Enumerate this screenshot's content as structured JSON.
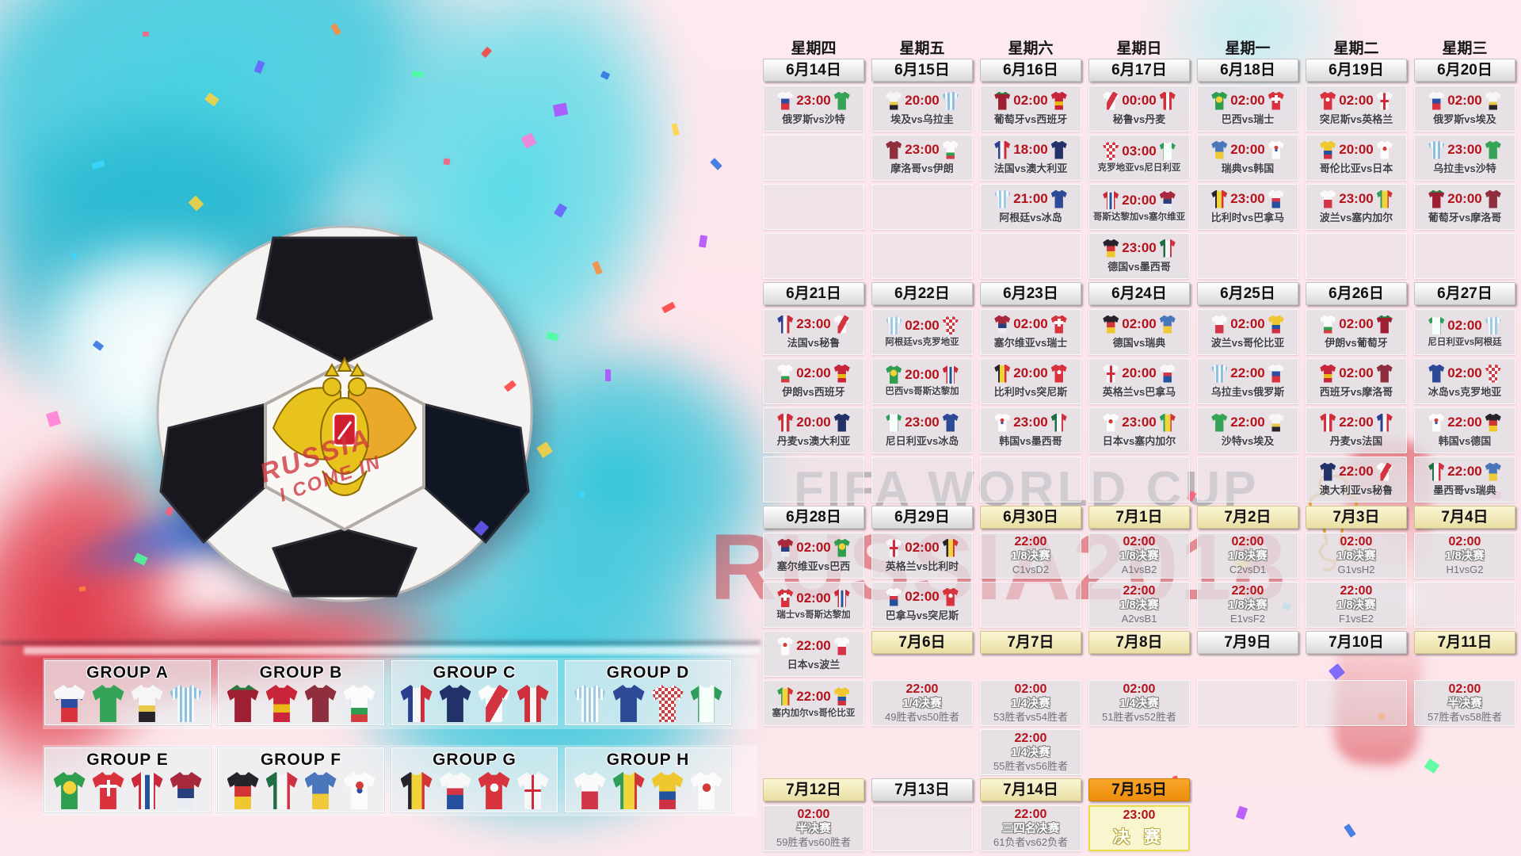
{
  "watermark": {
    "line1": "FIFA WORLD CUP",
    "line2": "RUSSIA2018"
  },
  "handwriting": {
    "line1": "RUSSIA",
    "line2": "I COME IN"
  },
  "weekdays": [
    "星期四",
    "星期五",
    "星期六",
    "星期日",
    "星期一",
    "星期二",
    "星期三"
  ],
  "team_keys": {
    "俄罗斯": "rus",
    "沙特": "ksa",
    "埃及": "egy",
    "乌拉圭": "uru",
    "葡萄牙": "por",
    "西班牙": "esp",
    "摩洛哥": "mar",
    "伊朗": "irn",
    "法国": "fra",
    "澳大利亚": "aus",
    "秘鲁": "per",
    "丹麦": "den",
    "阿根廷": "arg",
    "冰岛": "isl",
    "克罗地亚": "cro",
    "尼日利亚": "nga",
    "巴西": "bra",
    "瑞士": "sui",
    "哥斯达黎加": "crc",
    "塞尔维亚": "srb",
    "德国": "ger",
    "墨西哥": "mex",
    "瑞典": "swe",
    "韩国": "kor",
    "比利时": "bel",
    "巴拿马": "pan",
    "突尼斯": "tun",
    "英格兰": "eng",
    "波兰": "pol",
    "塞内加尔": "sen",
    "哥伦比亚": "col",
    "日本": "jpn"
  },
  "schedule": {
    "rows": [
      {
        "type": "dates",
        "items": [
          {
            "kind": "date",
            "label": "6月14日",
            "style": "plain"
          },
          {
            "kind": "date",
            "label": "6月15日",
            "style": "plain"
          },
          {
            "kind": "date",
            "label": "6月16日",
            "style": "plain"
          },
          {
            "kind": "date",
            "label": "6月17日",
            "style": "plain"
          },
          {
            "kind": "date",
            "label": "6月18日",
            "style": "plain"
          },
          {
            "kind": "date",
            "label": "6月19日",
            "style": "plain"
          },
          {
            "kind": "date",
            "label": "6月20日",
            "style": "plain"
          }
        ]
      },
      {
        "type": "cells",
        "items": [
          {
            "kind": "match",
            "time": "23:00",
            "home": "俄罗斯",
            "away": "沙特"
          },
          {
            "kind": "match",
            "time": "20:00",
            "home": "埃及",
            "away": "乌拉圭"
          },
          {
            "kind": "match",
            "time": "02:00",
            "home": "葡萄牙",
            "away": "西班牙"
          },
          {
            "kind": "match",
            "time": "00:00",
            "home": "秘鲁",
            "away": "丹麦"
          },
          {
            "kind": "match",
            "time": "02:00",
            "home": "巴西",
            "away": "瑞士"
          },
          {
            "kind": "match",
            "time": "02:00",
            "home": "突尼斯",
            "away": "英格兰"
          },
          {
            "kind": "match",
            "time": "02:00",
            "home": "俄罗斯",
            "away": "埃及"
          }
        ]
      },
      {
        "type": "cells",
        "items": [
          {
            "kind": "empty"
          },
          {
            "kind": "match",
            "time": "23:00",
            "home": "摩洛哥",
            "away": "伊朗"
          },
          {
            "kind": "match",
            "time": "18:00",
            "home": "法国",
            "away": "澳大利亚"
          },
          {
            "kind": "match",
            "time": "03:00",
            "home": "克罗地亚",
            "away": "尼日利亚"
          },
          {
            "kind": "match",
            "time": "20:00",
            "home": "瑞典",
            "away": "韩国"
          },
          {
            "kind": "match",
            "time": "20:00",
            "home": "哥伦比亚",
            "away": "日本"
          },
          {
            "kind": "match",
            "time": "23:00",
            "home": "乌拉圭",
            "away": "沙特"
          }
        ]
      },
      {
        "type": "cells",
        "items": [
          {
            "kind": "empty"
          },
          {
            "kind": "empty"
          },
          {
            "kind": "match",
            "time": "21:00",
            "home": "阿根廷",
            "away": "冰岛"
          },
          {
            "kind": "match",
            "time": "20:00",
            "home": "哥斯达黎加",
            "away": "塞尔维亚"
          },
          {
            "kind": "match",
            "time": "23:00",
            "home": "比利时",
            "away": "巴拿马"
          },
          {
            "kind": "match",
            "time": "23:00",
            "home": "波兰",
            "away": "塞内加尔"
          },
          {
            "kind": "match",
            "time": "20:00",
            "home": "葡萄牙",
            "away": "摩洛哥"
          }
        ]
      },
      {
        "type": "cells",
        "items": [
          {
            "kind": "empty"
          },
          {
            "kind": "empty"
          },
          {
            "kind": "empty"
          },
          {
            "kind": "match",
            "time": "23:00",
            "home": "德国",
            "away": "墨西哥"
          },
          {
            "kind": "empty"
          },
          {
            "kind": "empty"
          },
          {
            "kind": "empty"
          }
        ]
      },
      {
        "type": "dates",
        "items": [
          {
            "kind": "date",
            "label": "6月21日",
            "style": "plain"
          },
          {
            "kind": "date",
            "label": "6月22日",
            "style": "plain"
          },
          {
            "kind": "date",
            "label": "6月23日",
            "style": "plain"
          },
          {
            "kind": "date",
            "label": "6月24日",
            "style": "plain"
          },
          {
            "kind": "date",
            "label": "6月25日",
            "style": "plain"
          },
          {
            "kind": "date",
            "label": "6月26日",
            "style": "plain"
          },
          {
            "kind": "date",
            "label": "6月27日",
            "style": "plain"
          }
        ]
      },
      {
        "type": "cells",
        "items": [
          {
            "kind": "match",
            "time": "23:00",
            "home": "法国",
            "away": "秘鲁"
          },
          {
            "kind": "match",
            "time": "02:00",
            "home": "阿根廷",
            "away": "克罗地亚"
          },
          {
            "kind": "match",
            "time": "02:00",
            "home": "塞尔维亚",
            "away": "瑞士"
          },
          {
            "kind": "match",
            "time": "02:00",
            "home": "德国",
            "away": "瑞典"
          },
          {
            "kind": "match",
            "time": "02:00",
            "home": "波兰",
            "away": "哥伦比亚"
          },
          {
            "kind": "match",
            "time": "02:00",
            "home": "伊朗",
            "away": "葡萄牙"
          },
          {
            "kind": "match",
            "time": "02:00",
            "home": "尼日利亚",
            "away": "阿根廷"
          }
        ]
      },
      {
        "type": "cells",
        "items": [
          {
            "kind": "match",
            "time": "02:00",
            "home": "伊朗",
            "away": "西班牙"
          },
          {
            "kind": "match",
            "time": "20:00",
            "home": "巴西",
            "away": "哥斯达黎加"
          },
          {
            "kind": "match",
            "time": "20:00",
            "home": "比利时",
            "away": "突尼斯"
          },
          {
            "kind": "match",
            "time": "20:00",
            "home": "英格兰",
            "away": "巴拿马"
          },
          {
            "kind": "match",
            "time": "22:00",
            "home": "乌拉圭",
            "away": "俄罗斯"
          },
          {
            "kind": "match",
            "time": "02:00",
            "home": "西班牙",
            "away": "摩洛哥"
          },
          {
            "kind": "match",
            "time": "02:00",
            "home": "冰岛",
            "away": "克罗地亚"
          }
        ]
      },
      {
        "type": "cells",
        "items": [
          {
            "kind": "match",
            "time": "20:00",
            "home": "丹麦",
            "away": "澳大利亚"
          },
          {
            "kind": "match",
            "time": "23:00",
            "home": "尼日利亚",
            "away": "冰岛"
          },
          {
            "kind": "match",
            "time": "23:00",
            "home": "韩国",
            "away": "墨西哥"
          },
          {
            "kind": "match",
            "time": "23:00",
            "home": "日本",
            "away": "塞内加尔"
          },
          {
            "kind": "match",
            "time": "22:00",
            "home": "沙特",
            "away": "埃及"
          },
          {
            "kind": "match",
            "time": "22:00",
            "home": "丹麦",
            "away": "法国"
          },
          {
            "kind": "match",
            "time": "22:00",
            "home": "韩国",
            "away": "德国"
          }
        ]
      },
      {
        "type": "cells",
        "items": [
          {
            "kind": "empty"
          },
          {
            "kind": "empty"
          },
          {
            "kind": "empty"
          },
          {
            "kind": "empty"
          },
          {
            "kind": "empty"
          },
          {
            "kind": "match",
            "time": "22:00",
            "home": "澳大利亚",
            "away": "秘鲁"
          },
          {
            "kind": "match",
            "time": "22:00",
            "home": "墨西哥",
            "away": "瑞典"
          }
        ]
      },
      {
        "type": "dates",
        "items": [
          {
            "kind": "date",
            "label": "6月28日",
            "style": "plain"
          },
          {
            "kind": "date",
            "label": "6月29日",
            "style": "plain"
          },
          {
            "kind": "date",
            "label": "6月30日",
            "style": "gold"
          },
          {
            "kind": "date",
            "label": "7月1日",
            "style": "gold"
          },
          {
            "kind": "date",
            "label": "7月2日",
            "style": "gold"
          },
          {
            "kind": "date",
            "label": "7月3日",
            "style": "gold"
          },
          {
            "kind": "date",
            "label": "7月4日",
            "style": "gold"
          }
        ]
      },
      {
        "type": "cells",
        "items": [
          {
            "kind": "match",
            "time": "02:00",
            "home": "塞尔维亚",
            "away": "巴西"
          },
          {
            "kind": "match",
            "time": "02:00",
            "home": "英格兰",
            "away": "比利时"
          },
          {
            "kind": "ko",
            "time": "22:00",
            "stage": "1/8决赛",
            "teams": "C1vsD2"
          },
          {
            "kind": "ko",
            "time": "02:00",
            "stage": "1/8决赛",
            "teams": "A1vsB2"
          },
          {
            "kind": "ko",
            "time": "02:00",
            "stage": "1/8决赛",
            "teams": "C2vsD1"
          },
          {
            "kind": "ko",
            "time": "02:00",
            "stage": "1/8决赛",
            "teams": "G1vsH2"
          },
          {
            "kind": "ko",
            "time": "02:00",
            "stage": "1/8决赛",
            "teams": "H1vsG2"
          }
        ]
      },
      {
        "type": "cells",
        "items": [
          {
            "kind": "match",
            "time": "02:00",
            "home": "瑞士",
            "away": "哥斯达黎加"
          },
          {
            "kind": "match",
            "time": "02:00",
            "home": "巴拿马",
            "away": "突尼斯"
          },
          {
            "kind": "empty"
          },
          {
            "kind": "ko",
            "time": "22:00",
            "stage": "1/8决赛",
            "teams": "A2vsB1"
          },
          {
            "kind": "ko",
            "time": "22:00",
            "stage": "1/8决赛",
            "teams": "E1vsF2"
          },
          {
            "kind": "ko",
            "time": "22:00",
            "stage": "1/8决赛",
            "teams": "F1vsE2"
          },
          {
            "kind": "empty"
          }
        ]
      },
      {
        "type": "cells",
        "items": [
          {
            "kind": "match",
            "time": "22:00",
            "home": "日本",
            "away": "波兰"
          },
          {
            "kind": "date",
            "label": "7月6日",
            "style": "gold"
          },
          {
            "kind": "date",
            "label": "7月7日",
            "style": "gold"
          },
          {
            "kind": "date",
            "label": "7月8日",
            "style": "gold"
          },
          {
            "kind": "date",
            "label": "7月9日",
            "style": "plain"
          },
          {
            "kind": "date",
            "label": "7月10日",
            "style": "plain"
          },
          {
            "kind": "date",
            "label": "7月11日",
            "style": "gold"
          }
        ]
      },
      {
        "type": "cells",
        "items": [
          {
            "kind": "match",
            "time": "22:00",
            "home": "塞内加尔",
            "away": "哥伦比亚"
          },
          {
            "kind": "ko",
            "time": "22:00",
            "stage": "1/4决赛",
            "teams": "49胜者vs50胜者"
          },
          {
            "kind": "ko",
            "time": "02:00",
            "stage": "1/4决赛",
            "teams": "53胜者vs54胜者"
          },
          {
            "kind": "ko",
            "time": "02:00",
            "stage": "1/4决赛",
            "teams": "51胜者vs52胜者"
          },
          {
            "kind": "empty"
          },
          {
            "kind": "empty"
          },
          {
            "kind": "ko",
            "time": "02:00",
            "stage": "半决赛",
            "teams": "57胜者vs58胜者"
          }
        ]
      },
      {
        "type": "cells",
        "items": [
          null,
          null,
          {
            "kind": "ko",
            "time": "22:00",
            "stage": "1/4决赛",
            "teams": "55胜者vs56胜者"
          },
          null,
          null,
          null,
          null
        ]
      },
      {
        "type": "dates",
        "items": [
          {
            "kind": "date",
            "label": "7月12日",
            "style": "gold"
          },
          {
            "kind": "date",
            "label": "7月13日",
            "style": "plain"
          },
          {
            "kind": "date",
            "label": "7月14日",
            "style": "gold"
          },
          {
            "kind": "date",
            "label": "7月15日",
            "style": "orange"
          },
          null,
          null,
          null
        ]
      },
      {
        "type": "cells",
        "items": [
          {
            "kind": "ko",
            "time": "02:00",
            "stage": "半决赛",
            "teams": "59胜者vs60胜者"
          },
          {
            "kind": "empty"
          },
          {
            "kind": "ko",
            "time": "22:00",
            "stage": "三四名决赛",
            "teams": "61负者vs62负者"
          },
          {
            "kind": "final",
            "time": "23:00",
            "stage": "决 赛"
          },
          null,
          null,
          null
        ]
      }
    ]
  },
  "groups": [
    {
      "name": "GROUP A",
      "teams": [
        "俄罗斯",
        "沙特",
        "埃及",
        "乌拉圭"
      ]
    },
    {
      "name": "GROUP B",
      "teams": [
        "葡萄牙",
        "西班牙",
        "摩洛哥",
        "伊朗"
      ]
    },
    {
      "name": "GROUP C",
      "teams": [
        "法国",
        "澳大利亚",
        "秘鲁",
        "丹麦"
      ]
    },
    {
      "name": "GROUP D",
      "teams": [
        "阿根廷",
        "冰岛",
        "克罗地亚",
        "尼日利亚"
      ]
    },
    {
      "name": "GROUP E",
      "teams": [
        "巴西",
        "瑞士",
        "哥斯达黎加",
        "塞尔维亚"
      ]
    },
    {
      "name": "GROUP F",
      "teams": [
        "德国",
        "墨西哥",
        "瑞典",
        "韩国"
      ]
    },
    {
      "name": "GROUP G",
      "teams": [
        "比利时",
        "巴拿马",
        "突尼斯",
        "英格兰"
      ]
    },
    {
      "name": "GROUP H",
      "teams": [
        "波兰",
        "塞内加尔",
        "哥伦比亚",
        "日本"
      ]
    }
  ],
  "colors": {
    "time_red": "#b5121b",
    "final_orange": "#ee8d0c",
    "art_cyan": "#35c8dd"
  }
}
